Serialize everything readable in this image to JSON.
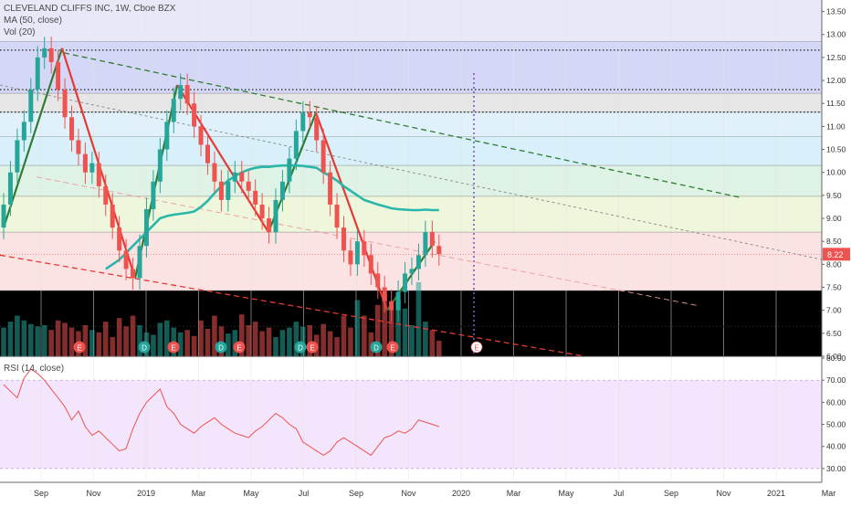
{
  "header": {
    "title": "CLEVELAND CLIFFS INC, 1W, Cboe BZX",
    "ma_label": "MA (50, close)",
    "vol_label": "Vol (20)",
    "rsi_label": "RSI (14, close)"
  },
  "colors": {
    "up": "#26a69a",
    "down": "#ef5350",
    "ma": "#2ab7a9",
    "rsi_line": "#ef5350",
    "trend_green": "#2e7d32",
    "trend_red": "#e53935",
    "earnings": "#ef5350",
    "dividend": "#26a69a",
    "rsi_band": "#f3e5fb",
    "zones": [
      "#e8e8f8",
      "#d5d7f7",
      "#e6e6e6",
      "#e1f1fb",
      "#d7f0f9",
      "#dff2e6",
      "#eef7dc",
      "#fbe3e3",
      "#ffffff"
    ]
  },
  "chart_data": {
    "type": "candlestick",
    "symbol": "CLEVELAND CLIFFS INC",
    "interval": "1W",
    "exchange": "Cboe BZX",
    "last_price": "8.22",
    "price_axis": {
      "ticks": [
        "13.50",
        "13.00",
        "12.50",
        "12.00",
        "11.50",
        "11.00",
        "10.50",
        "10.00",
        "9.50",
        "9.00",
        "8.50",
        "8.00",
        "7.50",
        "7.00",
        "6.50",
        "6.00"
      ],
      "range": [
        6.0,
        13.75
      ]
    },
    "rsi_axis": {
      "ticks": [
        "80.00",
        "70.00",
        "60.00",
        "50.00",
        "40.00",
        "30.00"
      ],
      "range": [
        25,
        80
      ],
      "band": [
        30,
        70
      ]
    },
    "time_axis": [
      "Sep",
      "Nov",
      "2019",
      "Mar",
      "May",
      "Jul",
      "Sep",
      "Nov",
      "2020",
      "Mar",
      "May",
      "Jul",
      "Sep",
      "Nov",
      "2021",
      "Mar"
    ],
    "fib_levels": [
      13.75,
      12.85,
      11.72,
      11.31,
      10.78,
      10.15,
      9.48,
      8.7,
      7.43
    ],
    "dotted_levels": [
      12.66,
      11.8,
      11.31,
      6.65
    ],
    "closes": [
      9.3,
      10.0,
      10.7,
      11.1,
      11.8,
      12.5,
      12.7,
      12.4,
      11.8,
      11.2,
      10.7,
      10.4,
      10.0,
      10.2,
      9.7,
      9.3,
      8.8,
      8.3,
      7.9,
      7.7,
      8.4,
      9.2,
      9.8,
      10.5,
      11.1,
      11.6,
      11.9,
      11.5,
      11.0,
      10.6,
      10.2,
      9.8,
      9.4,
      9.8,
      10.0,
      9.8,
      9.6,
      9.3,
      9.0,
      8.7,
      9.4,
      9.8,
      10.3,
      10.9,
      11.3,
      11.2,
      10.7,
      10.0,
      9.3,
      8.8,
      8.3,
      8.0,
      8.5,
      8.2,
      7.8,
      7.5,
      7.2,
      7.0,
      7.4,
      7.8,
      7.9,
      8.2,
      8.7,
      8.4,
      8.22
    ],
    "ma50": [
      null,
      null,
      null,
      null,
      null,
      null,
      null,
      null,
      null,
      null,
      null,
      null,
      null,
      null,
      null,
      7.9,
      8.0,
      8.1,
      8.25,
      8.4,
      8.55,
      8.7,
      8.85,
      9.0,
      9.05,
      9.08,
      9.1,
      9.12,
      9.15,
      9.25,
      9.38,
      9.55,
      9.7,
      9.82,
      9.92,
      10.0,
      10.06,
      10.1,
      10.12,
      10.12,
      10.14,
      10.15,
      10.15,
      10.15,
      10.14,
      10.12,
      10.1,
      10.0,
      9.92,
      9.82,
      9.7,
      9.6,
      9.5,
      9.4,
      9.35,
      9.3,
      9.26,
      9.22,
      9.2,
      9.19,
      9.18,
      9.18,
      9.19,
      9.18,
      9.18
    ],
    "volume": [
      2.4,
      2.9,
      3.4,
      3.0,
      2.7,
      2.5,
      2.6,
      2.2,
      3.0,
      2.8,
      2.4,
      2.1,
      2.6,
      2.2,
      2.0,
      2.9,
      1.6,
      3.2,
      2.5,
      3.4,
      2.6,
      2.0,
      1.8,
      2.8,
      3.0,
      2.4,
      2.0,
      2.2,
      1.7,
      3.0,
      2.3,
      3.4,
      2.5,
      1.9,
      2.2,
      3.5,
      2.6,
      2.9,
      2.1,
      2.4,
      1.6,
      2.2,
      2.4,
      2.9,
      2.5,
      2.6,
      1.8,
      2.7,
      2.1,
      1.6,
      3.4,
      2.4,
      4.7,
      3.4,
      2.0,
      4.3,
      5.2,
      3.9,
      4.8,
      4.0,
      2.6,
      6.2,
      2.9,
      2.2,
      1.3
    ],
    "rsi": [
      68,
      65,
      62,
      71,
      75,
      73,
      70,
      66,
      62,
      58,
      52,
      56,
      49,
      45,
      47,
      44,
      41,
      38,
      39,
      48,
      55,
      60,
      63,
      66,
      58,
      55,
      50,
      48,
      46,
      49,
      51,
      53,
      50,
      48,
      46,
      45,
      44,
      47,
      49,
      52,
      55,
      53,
      50,
      48,
      42,
      40,
      38,
      36,
      38,
      42,
      44,
      42,
      40,
      38,
      36,
      40,
      44,
      45,
      47,
      46,
      48,
      52,
      51,
      50,
      49
    ],
    "events": [
      {
        "label": "E",
        "type": "earnings"
      },
      {
        "label": "D",
        "type": "dividend"
      },
      {
        "label": "E",
        "type": "earnings"
      },
      {
        "label": "D",
        "type": "dividend"
      },
      {
        "label": "E",
        "type": "earnings"
      },
      {
        "label": "D",
        "type": "dividend"
      },
      {
        "label": "E",
        "type": "earnings"
      },
      {
        "label": "D",
        "type": "dividend"
      },
      {
        "label": "E",
        "type": "earnings"
      },
      {
        "label": "E",
        "type": "earnings"
      }
    ]
  }
}
